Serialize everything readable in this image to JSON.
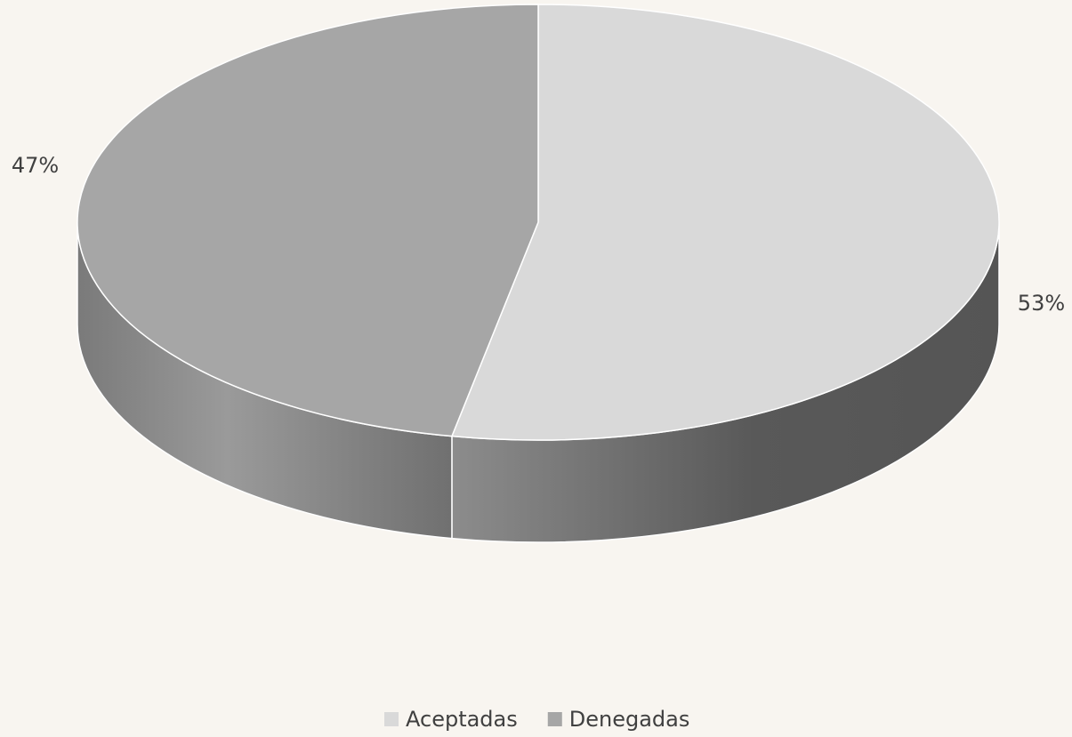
{
  "chart_data": {
    "type": "pie3d",
    "categories": [
      "Aceptadas",
      "Denegadas"
    ],
    "values": [
      53,
      47
    ],
    "value_labels": [
      "53%",
      "47%"
    ],
    "colors": [
      "#d9d9d9",
      "#a6a6a6"
    ]
  }
}
